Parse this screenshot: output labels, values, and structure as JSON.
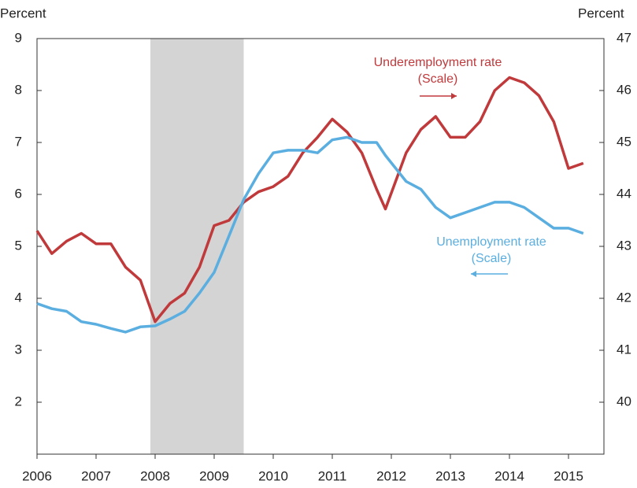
{
  "chart_data": {
    "type": "line",
    "ylabel": "Percent",
    "y2label": "Percent",
    "xlim": [
      2006,
      2015.6
    ],
    "xticks": [
      2006,
      2007,
      2008,
      2009,
      2010,
      2011,
      2012,
      2013,
      2014,
      2015
    ],
    "ylim": [
      1,
      9
    ],
    "yticks": [
      2,
      3,
      4,
      5,
      6,
      7,
      8,
      9
    ],
    "y2lim": [
      39,
      47
    ],
    "y2ticks": [
      40,
      41,
      42,
      43,
      44,
      45,
      46,
      47
    ],
    "shaded_region": [
      2007.92,
      2009.5
    ],
    "shade_color": "#d4d4d4",
    "annotations": [
      {
        "lines": [
          "Underemployment rate",
          "(Scale)"
        ],
        "series": 0
      },
      {
        "lines": [
          "Unemployment rate",
          "(Scale)"
        ],
        "series": 1
      }
    ],
    "x": [
      2006.0,
      2006.25,
      2006.5,
      2006.75,
      2007.0,
      2007.25,
      2007.5,
      2007.75,
      2008.0,
      2008.25,
      2008.5,
      2008.75,
      2009.0,
      2009.25,
      2009.5,
      2009.75,
      2010.0,
      2010.25,
      2010.5,
      2010.75,
      2011.0,
      2011.25,
      2011.5,
      2011.75,
      2011.9,
      2012.25,
      2012.5,
      2012.75,
      2013.0,
      2013.25,
      2013.5,
      2013.75,
      2014.0,
      2014.25,
      2014.5,
      2014.75,
      2015.0,
      2015.25
    ],
    "series": [
      {
        "name": "Underemployment rate",
        "color": "#c0393b",
        "axis": "y2",
        "values": [
          43.3,
          42.86,
          43.1,
          43.25,
          43.05,
          43.05,
          42.6,
          42.35,
          41.55,
          41.9,
          42.1,
          42.6,
          43.4,
          43.5,
          43.85,
          44.05,
          44.15,
          44.35,
          44.8,
          45.1,
          45.45,
          45.2,
          44.8,
          44.1,
          43.72,
          44.8,
          45.25,
          45.5,
          45.1,
          45.1,
          45.4,
          46.0,
          46.25,
          46.15,
          45.9,
          45.4,
          44.5,
          44.6
        ]
      },
      {
        "name": "Unemployment rate",
        "color": "#5aaee0",
        "values": [
          3.9,
          3.8,
          3.75,
          3.55,
          3.5,
          3.42,
          3.35,
          3.45,
          3.47,
          3.6,
          3.75,
          4.1,
          4.5,
          5.2,
          5.9,
          6.4,
          6.8,
          6.85,
          6.85,
          6.8,
          7.05,
          7.1,
          7.0,
          7.0,
          6.75,
          6.25,
          6.1,
          5.75,
          5.55,
          5.65,
          5.75,
          5.85,
          5.85,
          5.75,
          5.55,
          5.35,
          5.35,
          5.25
        ]
      }
    ]
  }
}
